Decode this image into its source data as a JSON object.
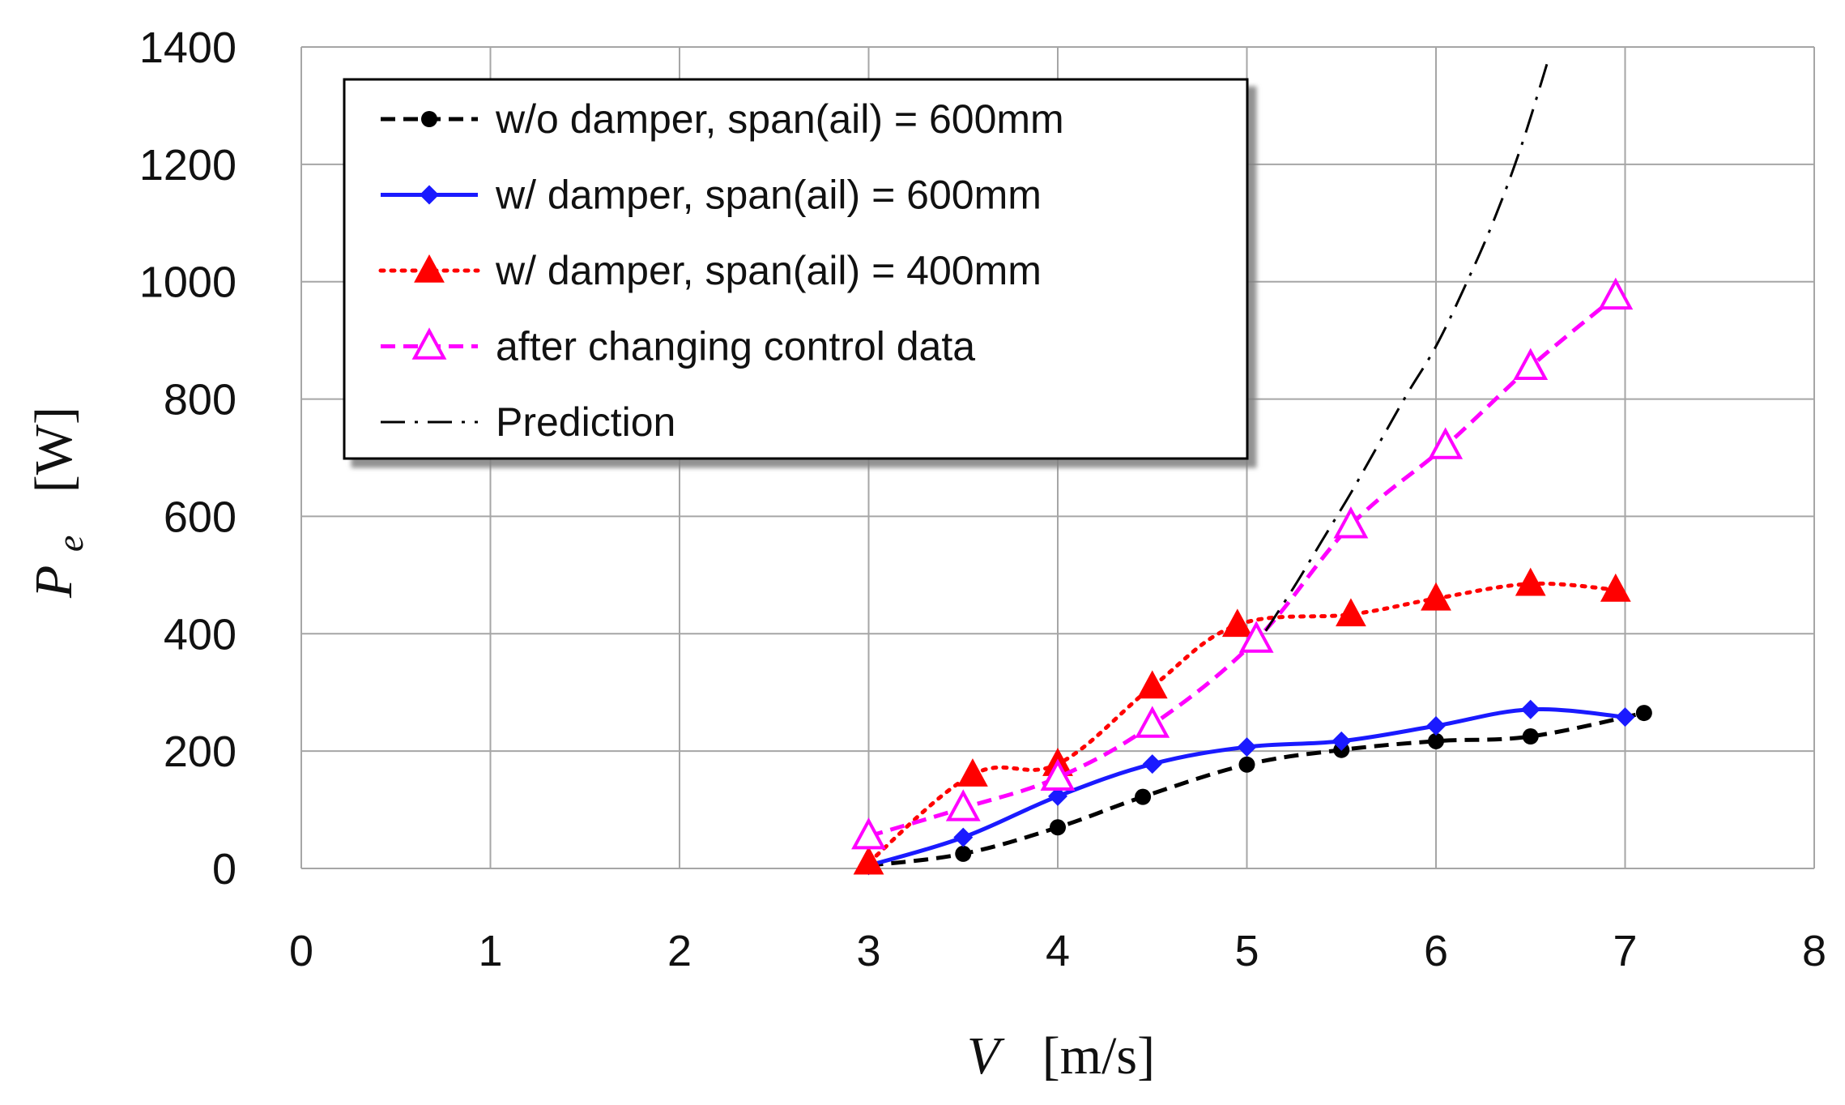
{
  "chart_data": {
    "type": "line",
    "xlabel_symbol": "V",
    "xlabel_unit": "[m/s]",
    "ylabel_symbol": "P",
    "ylabel_subscript": "e",
    "ylabel_unit": "[W]",
    "xlim": [
      0,
      8
    ],
    "ylim": [
      0,
      1400
    ],
    "xticks": [
      "0",
      "1",
      "2",
      "3",
      "4",
      "5",
      "6",
      "7",
      "8"
    ],
    "yticks": [
      "0",
      "200",
      "400",
      "600",
      "800",
      "1000",
      "1200",
      "1400"
    ],
    "grid": true,
    "legend_position": "top-left",
    "series": [
      {
        "name": "w/o damper, span(ail) = 600mm",
        "color": "#000000",
        "line_style": "dashed",
        "marker": "circle",
        "x": [
          3.0,
          3.5,
          4.0,
          4.45,
          5.0,
          5.5,
          6.0,
          6.5,
          7.1
        ],
        "y": [
          5,
          25,
          70,
          122,
          177,
          202,
          217,
          225,
          265
        ]
      },
      {
        "name": "w/ damper, span(ail) = 600mm",
        "color": "#1a1aff",
        "line_style": "solid",
        "marker": "diamond",
        "x": [
          3.0,
          3.5,
          4.0,
          4.5,
          5.0,
          5.5,
          6.0,
          6.5,
          7.0
        ],
        "y": [
          5,
          53,
          123,
          178,
          207,
          217,
          243,
          271,
          258
        ]
      },
      {
        "name": "w/ damper, span(ail) = 400mm",
        "color": "#ff0000",
        "line_style": "dotted",
        "marker": "triangle-filled",
        "x": [
          3.0,
          3.55,
          4.0,
          4.5,
          4.95,
          5.55,
          6.0,
          6.5,
          6.95
        ],
        "y": [
          10,
          160,
          178,
          310,
          415,
          433,
          460,
          485,
          475
        ]
      },
      {
        "name": "after changing control data",
        "color": "#ff00ff",
        "line_style": "dashed",
        "marker": "triangle-open",
        "x": [
          3.0,
          3.5,
          4.0,
          4.5,
          5.05,
          5.55,
          6.05,
          6.5,
          6.95
        ],
        "y": [
          55,
          103,
          155,
          245,
          390,
          585,
          720,
          855,
          975
        ]
      },
      {
        "name": "Prediction",
        "color": "#000000",
        "line_style": "dashdot",
        "marker": "none",
        "x": [
          5.1,
          5.25,
          5.4,
          5.55,
          5.7,
          5.85,
          6.0,
          6.15,
          6.3,
          6.45,
          6.6
        ],
        "y": [
          405,
          480,
          560,
          640,
          725,
          810,
          890,
          990,
          1100,
          1230,
          1385
        ]
      }
    ]
  }
}
